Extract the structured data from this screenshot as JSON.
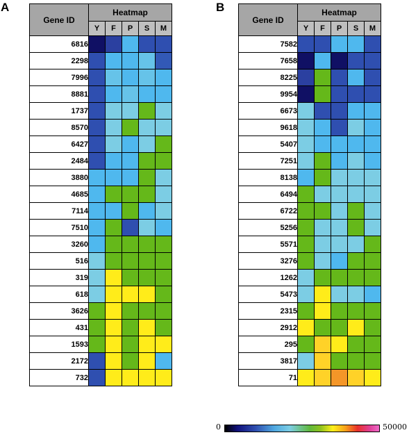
{
  "chart_data": [
    {
      "type": "heatmap",
      "panel": "A",
      "row_header": "Gene ID",
      "column_group_header": "Heatmap",
      "columns": [
        "Y",
        "F",
        "P",
        "S",
        "M"
      ],
      "rows": [
        {
          "id": "6816",
          "values": [
            2000,
            7000,
            14000,
            8500,
            8500
          ]
        },
        {
          "id": "2298",
          "values": [
            8500,
            14000,
            14000,
            15000,
            9000
          ]
        },
        {
          "id": "7996",
          "values": [
            8500,
            15000,
            14000,
            15000,
            14000
          ]
        },
        {
          "id": "8881",
          "values": [
            8500,
            14000,
            15000,
            14000,
            14000
          ]
        },
        {
          "id": "1737",
          "values": [
            8500,
            16000,
            16000,
            24000,
            16000
          ]
        },
        {
          "id": "8570",
          "values": [
            8500,
            16000,
            24000,
            16000,
            16000
          ]
        },
        {
          "id": "6427",
          "values": [
            8500,
            16000,
            14000,
            16000,
            24000
          ]
        },
        {
          "id": "2484",
          "values": [
            8500,
            14000,
            14000,
            24000,
            24000
          ]
        },
        {
          "id": "3880",
          "values": [
            14000,
            14000,
            14000,
            24000,
            16000
          ]
        },
        {
          "id": "4685",
          "values": [
            14000,
            24000,
            24000,
            24000,
            16000
          ]
        },
        {
          "id": "7114",
          "values": [
            14000,
            14000,
            24000,
            14000,
            16000
          ]
        },
        {
          "id": "7510",
          "values": [
            14000,
            24000,
            8500,
            16000,
            14000
          ]
        },
        {
          "id": "3260",
          "values": [
            14000,
            24000,
            24000,
            24000,
            24000
          ]
        },
        {
          "id": "516",
          "values": [
            16000,
            24000,
            24000,
            24000,
            24000
          ]
        },
        {
          "id": "319",
          "values": [
            16000,
            33000,
            24000,
            24000,
            24000
          ]
        },
        {
          "id": "618",
          "values": [
            16000,
            33000,
            33000,
            33000,
            24000
          ]
        },
        {
          "id": "3626",
          "values": [
            24000,
            33000,
            24000,
            24000,
            24000
          ]
        },
        {
          "id": "431",
          "values": [
            24000,
            33000,
            24000,
            33000,
            24000
          ]
        },
        {
          "id": "1593",
          "values": [
            24000,
            33000,
            24000,
            33000,
            33000
          ]
        },
        {
          "id": "2172",
          "values": [
            8500,
            33000,
            24000,
            33000,
            14000
          ]
        },
        {
          "id": "732",
          "values": [
            8500,
            33000,
            33000,
            33000,
            33000
          ]
        }
      ],
      "scale_min": "0",
      "scale_max": "50000"
    },
    {
      "type": "heatmap",
      "panel": "B",
      "row_header": "Gene ID",
      "column_group_header": "Heatmap",
      "columns": [
        "Y",
        "F",
        "P",
        "S",
        "M"
      ],
      "rows": [
        {
          "id": "7582",
          "values": [
            8500,
            8500,
            14000,
            14000,
            8500
          ]
        },
        {
          "id": "7658",
          "values": [
            2000,
            14000,
            2000,
            8500,
            8500
          ]
        },
        {
          "id": "8225",
          "values": [
            7000,
            24000,
            8500,
            14000,
            8500
          ]
        },
        {
          "id": "9954",
          "values": [
            2000,
            24000,
            8500,
            8500,
            8500
          ]
        },
        {
          "id": "6673",
          "values": [
            16000,
            8500,
            8500,
            14000,
            14000
          ]
        },
        {
          "id": "9618",
          "values": [
            16000,
            14000,
            8500,
            16000,
            14000
          ]
        },
        {
          "id": "5407",
          "values": [
            16000,
            14000,
            14000,
            14000,
            14000
          ]
        },
        {
          "id": "7251",
          "values": [
            16000,
            24000,
            14000,
            16000,
            14000
          ]
        },
        {
          "id": "8138",
          "values": [
            14000,
            24000,
            16000,
            16000,
            16000
          ]
        },
        {
          "id": "6494",
          "values": [
            24000,
            16000,
            16000,
            16000,
            16000
          ]
        },
        {
          "id": "6722",
          "values": [
            24000,
            24000,
            16000,
            24000,
            16000
          ]
        },
        {
          "id": "5256",
          "values": [
            24000,
            16000,
            16000,
            24000,
            16000
          ]
        },
        {
          "id": "5571",
          "values": [
            24000,
            16000,
            16000,
            16000,
            24000
          ]
        },
        {
          "id": "3276",
          "values": [
            24000,
            16000,
            14000,
            24000,
            24000
          ]
        },
        {
          "id": "1262",
          "values": [
            16000,
            24000,
            24000,
            24000,
            24000
          ]
        },
        {
          "id": "5473",
          "values": [
            16000,
            33000,
            16000,
            16000,
            14000
          ]
        },
        {
          "id": "2315",
          "values": [
            24000,
            33000,
            24000,
            24000,
            24000
          ]
        },
        {
          "id": "2912",
          "values": [
            33000,
            24000,
            24000,
            33000,
            24000
          ]
        },
        {
          "id": "295",
          "values": [
            24000,
            36000,
            33000,
            24000,
            24000
          ]
        },
        {
          "id": "3817",
          "values": [
            16000,
            36000,
            24000,
            24000,
            24000
          ]
        },
        {
          "id": "71",
          "values": [
            33000,
            36000,
            38000,
            36000,
            33000
          ]
        }
      ],
      "scale_min": "0",
      "scale_max": "50000"
    }
  ]
}
